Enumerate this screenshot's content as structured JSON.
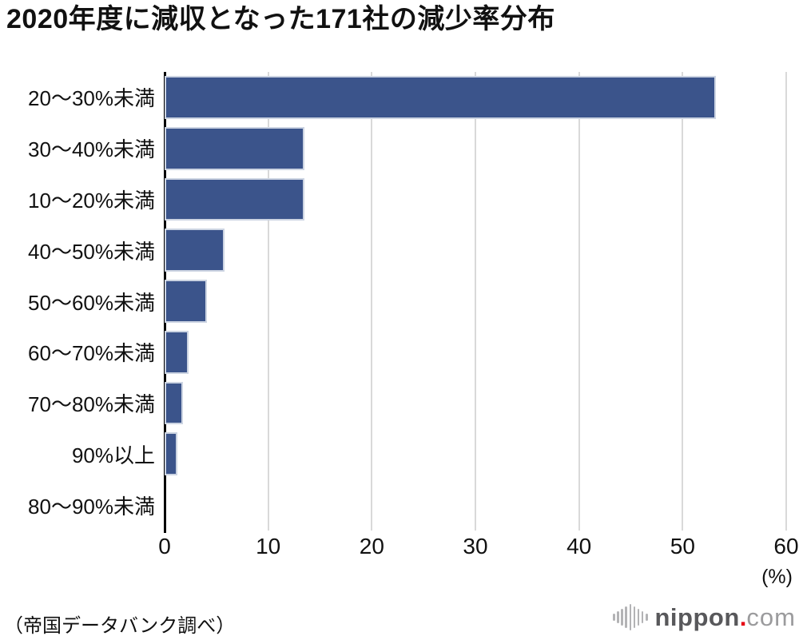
{
  "title": "2020年度に減収となった171社の減少率分布",
  "chart_data": {
    "type": "bar",
    "orientation": "horizontal",
    "title": "2020年度に減収となった171社の減少率分布",
    "categories": [
      "20〜30%未満",
      "30〜40%未満",
      "10〜20%未満",
      "40〜50%未満",
      "50〜60%未満",
      "60〜70%未満",
      "70〜80%未満",
      "90%以上",
      "80〜90%未満"
    ],
    "values": [
      53.2,
      13.5,
      13.5,
      5.8,
      4.1,
      2.3,
      1.8,
      1.2,
      0
    ],
    "xlabel": "(%)",
    "xlim": [
      0,
      60
    ],
    "xticks": [
      0,
      10,
      20,
      30,
      40,
      50,
      60
    ],
    "grid": true,
    "legend": "none",
    "bar_color": "#3b548b",
    "bar_border_color": "#ccd4e2",
    "gridline_color": "#d9d9d9",
    "axis_color": "#000000"
  },
  "footer": {
    "source": "（帝国データバンク調べ）",
    "logo": {
      "name": "nippon",
      "dot": ".",
      "tld": "com",
      "dot_color": "#e60012",
      "wave_bar_heights": [
        9,
        15,
        21,
        27,
        33,
        27,
        21,
        15,
        9
      ]
    }
  }
}
